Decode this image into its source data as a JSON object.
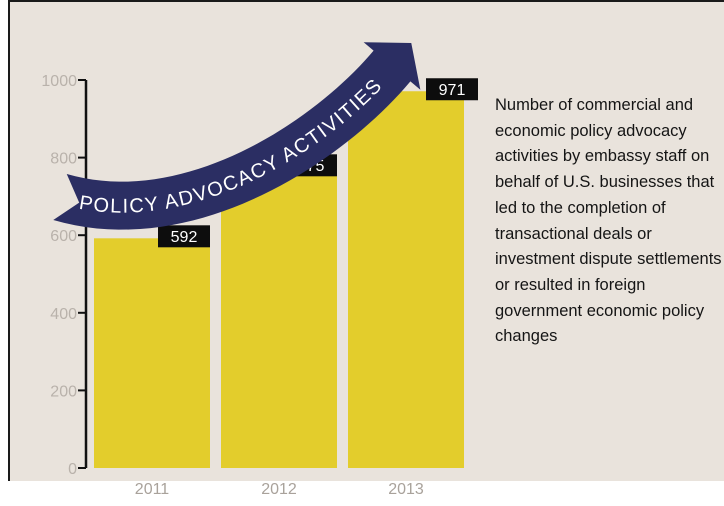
{
  "chart_data": {
    "type": "bar",
    "categories": [
      "2011",
      "2012",
      "2013"
    ],
    "values": [
      592,
      775,
      971
    ],
    "value_labels": [
      "592",
      "775",
      "971"
    ],
    "ylim": [
      0,
      1000
    ],
    "yticks": [
      "0",
      "200",
      "400",
      "600",
      "800",
      "1000"
    ],
    "ytick_values": [
      0,
      200,
      400,
      600,
      800,
      1000
    ],
    "grid": false,
    "banner": "POLICY ADVOCACY ACTIVITIES",
    "bar_color": "#e3cd2c",
    "label_box_color": "#0d0d0d",
    "banner_color": "#2b2e63"
  },
  "description": "Number of commercial and economic policy advocacy activities by embassy staff on behalf of U.S. businesses that led to the completion of transactional deals or investment dispute settlements or resulted in foreign government economic policy changes"
}
